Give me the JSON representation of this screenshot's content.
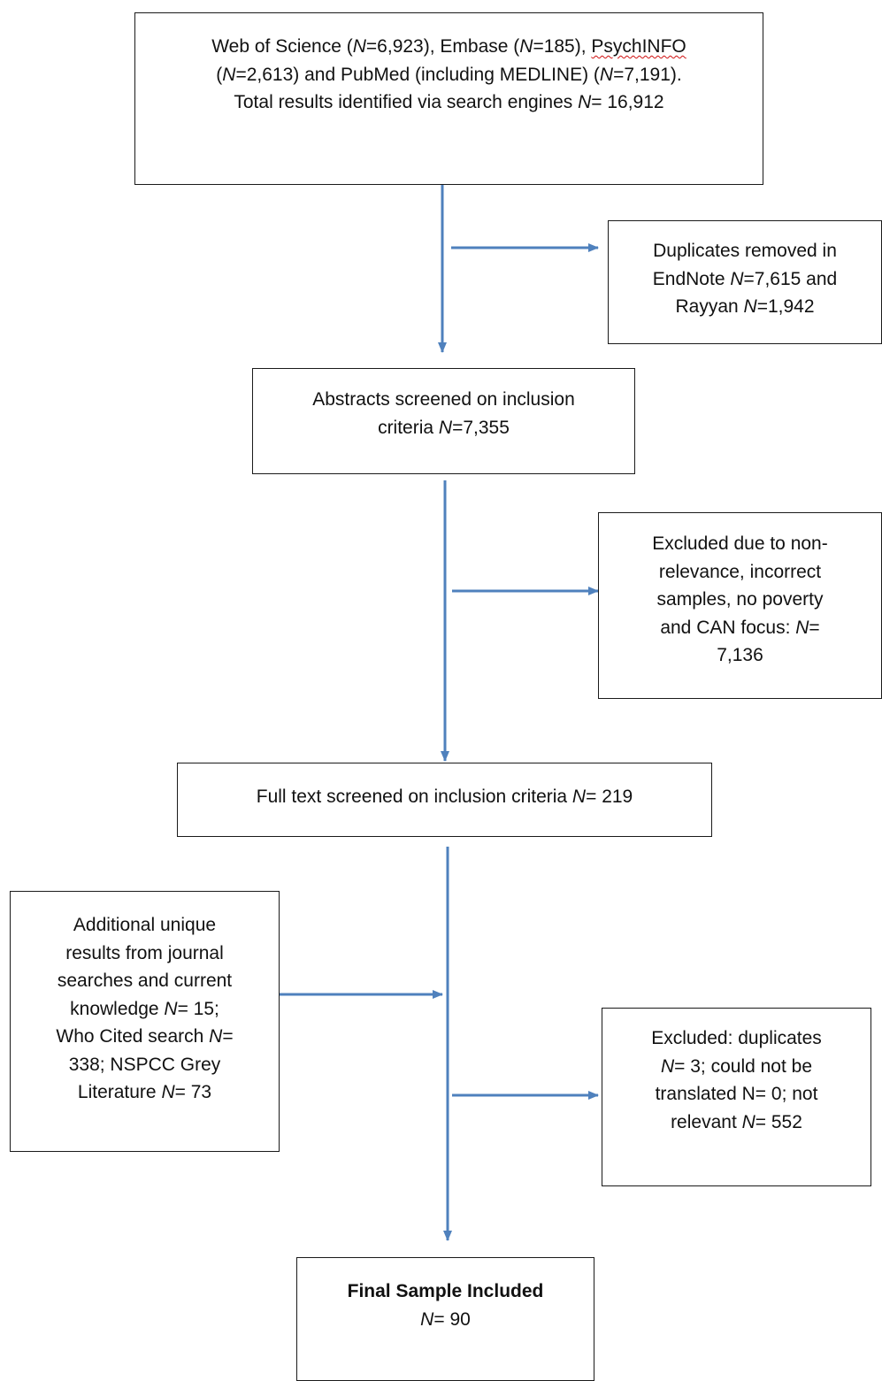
{
  "colors": {
    "arrow": "#4f81bd",
    "box_border": "#1a1a1a",
    "spell_check_underline": "#d01010"
  },
  "boxes": {
    "search": {
      "line1_a": "Web of Science (",
      "line1_n1": "N",
      "line1_b": "=6,923), Embase (",
      "line1_n2": "N",
      "line1_c": "=185), ",
      "line1_psych": "PsychINFO",
      "line2_a": "(",
      "line2_n1": "N",
      "line2_b": "=2,613) and PubMed (including MEDLINE) (",
      "line2_n2": "N",
      "line2_c": "=7,191).",
      "line3_a": "Total results identified via search engines ",
      "line3_n": "N",
      "line3_b": "= 16,912"
    },
    "duplicates": {
      "line1": "Duplicates removed in",
      "line2_a": "EndNote ",
      "line2_n": "N",
      "line2_b": "=7,615 and",
      "line3_a": "Rayyan ",
      "line3_n": "N",
      "line3_b": "=1,942"
    },
    "abstracts": {
      "line1": "Abstracts screened on inclusion",
      "line2_a": "criteria ",
      "line2_n": "N",
      "line2_b": "=7,355"
    },
    "excluded1": {
      "line1": "Excluded due to non-",
      "line2": "relevance, incorrect",
      "line3": "samples, no poverty",
      "line4_a": "and CAN focus: ",
      "line4_n": "N",
      "line4_b": "=",
      "line5": "7,136"
    },
    "fulltext": {
      "line1_a": "Full text screened on inclusion criteria ",
      "line1_n": "N",
      "line1_b": "= 219"
    },
    "additional": {
      "line1": "Additional unique",
      "line2": "results from journal",
      "line3": "searches and current",
      "line4_a": "knowledge ",
      "line4_n": "N",
      "line4_b": "= 15;",
      "line5_a": "Who Cited search ",
      "line5_n": "N",
      "line5_b": "=",
      "line6": "338; NSPCC Grey",
      "line7_a": "Literature ",
      "line7_n": "N",
      "line7_b": "= 73"
    },
    "excluded2": {
      "line1": "Excluded: duplicates",
      "line2_n": "N",
      "line2_b": "= 3; could not be",
      "line3": "translated N= 0; not",
      "line4_a": "relevant ",
      "line4_n": "N",
      "line4_b": "= 552"
    },
    "final": {
      "line1": "Final Sample Included",
      "line2_n": "N",
      "line2_b": "= 90"
    }
  }
}
